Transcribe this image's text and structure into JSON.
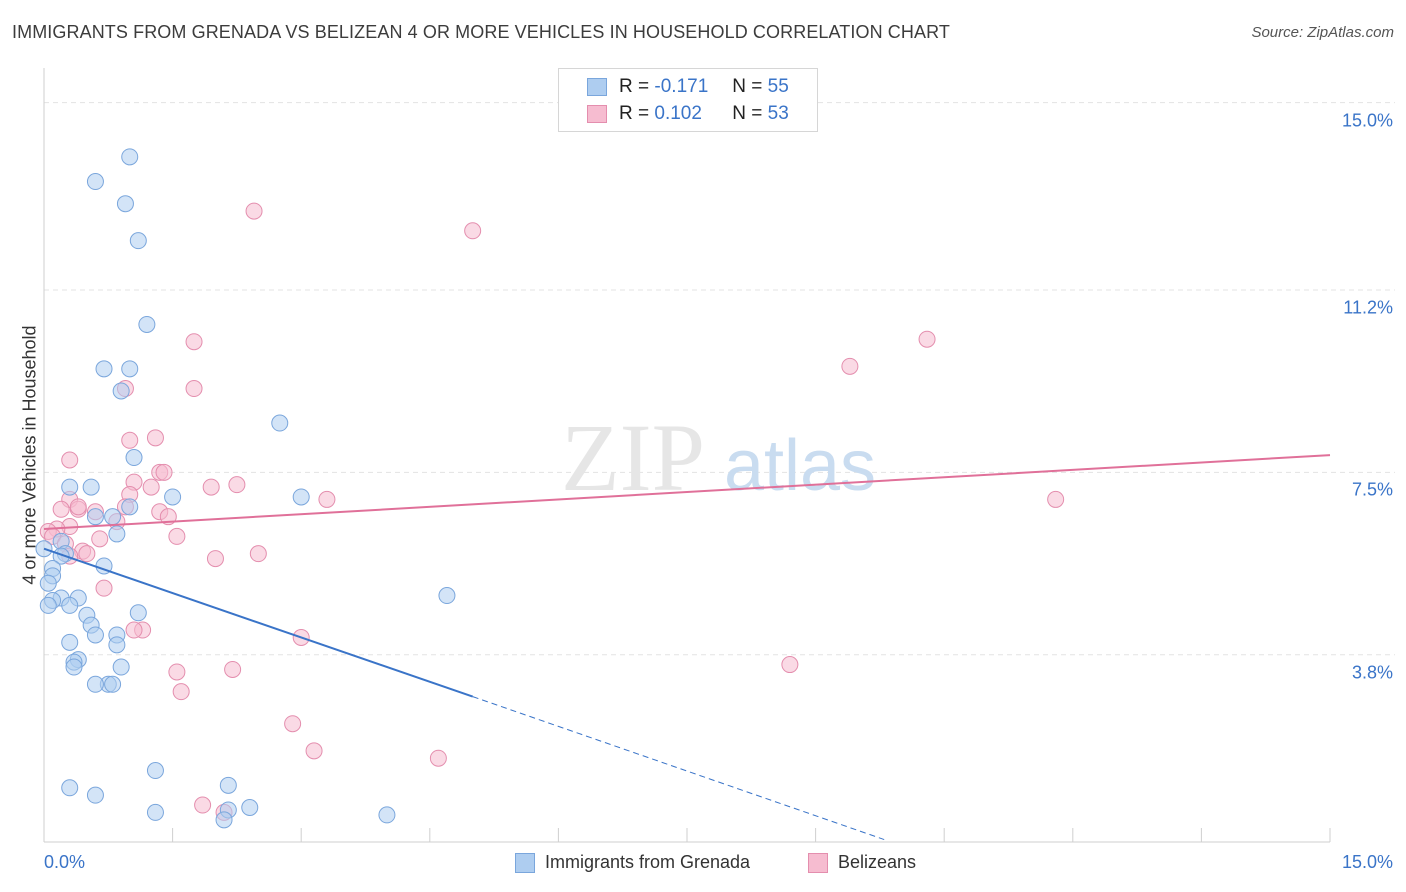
{
  "title": "IMMIGRANTS FROM GRENADA VS BELIZEAN 4 OR MORE VEHICLES IN HOUSEHOLD CORRELATION CHART",
  "source": "Source: ZipAtlas.com",
  "colors": {
    "blue": "#3a74c8",
    "blue_fill": "#aecdf0",
    "pink": "#e07099",
    "pink_fill": "#f6bcd0"
  },
  "legend": {
    "series1": {
      "r_label": "R =",
      "r_value": "-0.171",
      "n_label": "N =",
      "n_value": "55"
    },
    "series2": {
      "r_label": "R =",
      "r_value": "0.102",
      "n_label": "N =",
      "n_value": "53"
    }
  },
  "chart_data": {
    "type": "scatter",
    "title": "IMMIGRANTS FROM GRENADA VS BELIZEAN 4 OR MORE VEHICLES IN HOUSEHOLD CORRELATION CHART",
    "xlabel": "",
    "ylabel": "4 or more Vehicles in Household",
    "xlim": [
      0,
      15
    ],
    "ylim": [
      0,
      15.5
    ],
    "x_tick_labels": [
      "0.0%",
      "15.0%"
    ],
    "y_ticks": [
      3.8,
      7.5,
      11.2,
      15.0
    ],
    "y_tick_labels": [
      "3.8%",
      "7.5%",
      "11.2%",
      "15.0%"
    ],
    "grid": true,
    "legend_position": "top-center",
    "series": [
      {
        "name": "Immigrants from Grenada",
        "color": "#3a74c8",
        "points": [
          [
            1.0,
            13.9
          ],
          [
            0.6,
            13.4
          ],
          [
            0.95,
            12.95
          ],
          [
            1.1,
            12.2
          ],
          [
            1.2,
            10.5
          ],
          [
            0.7,
            9.6
          ],
          [
            1.0,
            9.6
          ],
          [
            0.9,
            9.15
          ],
          [
            2.75,
            8.5
          ],
          [
            1.05,
            7.8
          ],
          [
            0.55,
            7.2
          ],
          [
            0.3,
            7.2
          ],
          [
            1.5,
            7.0
          ],
          [
            3.0,
            7.0
          ],
          [
            1.0,
            6.8
          ],
          [
            0.8,
            6.6
          ],
          [
            0.6,
            6.6
          ],
          [
            0.85,
            6.25
          ],
          [
            0.2,
            6.1
          ],
          [
            0.0,
            5.95
          ],
          [
            0.25,
            5.85
          ],
          [
            0.2,
            5.8
          ],
          [
            0.7,
            5.6
          ],
          [
            0.1,
            5.55
          ],
          [
            0.1,
            5.4
          ],
          [
            0.05,
            5.25
          ],
          [
            4.7,
            5.0
          ],
          [
            0.4,
            4.95
          ],
          [
            0.2,
            4.95
          ],
          [
            0.1,
            4.9
          ],
          [
            0.05,
            4.8
          ],
          [
            0.3,
            4.8
          ],
          [
            1.1,
            4.65
          ],
          [
            0.5,
            4.6
          ],
          [
            0.55,
            4.4
          ],
          [
            0.6,
            4.2
          ],
          [
            0.85,
            4.2
          ],
          [
            0.85,
            4.0
          ],
          [
            0.3,
            4.05
          ],
          [
            0.4,
            3.7
          ],
          [
            0.35,
            3.65
          ],
          [
            0.35,
            3.55
          ],
          [
            0.9,
            3.55
          ],
          [
            0.75,
            3.2
          ],
          [
            0.6,
            3.2
          ],
          [
            0.8,
            3.2
          ],
          [
            1.3,
            1.45
          ],
          [
            0.3,
            1.1
          ],
          [
            2.15,
            1.15
          ],
          [
            0.6,
            0.95
          ],
          [
            1.3,
            0.6
          ],
          [
            2.4,
            0.7
          ],
          [
            2.15,
            0.65
          ],
          [
            4.0,
            0.55
          ],
          [
            2.1,
            0.45
          ]
        ],
        "trend": {
          "x": [
            0.0,
            5.0
          ],
          "y": [
            5.95,
            2.95
          ],
          "dashed_to": [
            9.8,
            0.05
          ]
        }
      },
      {
        "name": "Belizeans",
        "color": "#e07099",
        "points": [
          [
            2.45,
            12.8
          ],
          [
            5.0,
            12.4
          ],
          [
            1.75,
            10.15
          ],
          [
            10.3,
            10.2
          ],
          [
            9.4,
            9.65
          ],
          [
            1.75,
            9.2
          ],
          [
            0.95,
            9.2
          ],
          [
            1.3,
            8.2
          ],
          [
            1.0,
            8.15
          ],
          [
            0.3,
            7.75
          ],
          [
            1.35,
            7.5
          ],
          [
            1.4,
            7.5
          ],
          [
            1.05,
            7.3
          ],
          [
            2.25,
            7.25
          ],
          [
            1.95,
            7.2
          ],
          [
            1.25,
            7.2
          ],
          [
            1.0,
            7.05
          ],
          [
            0.3,
            6.95
          ],
          [
            3.3,
            6.95
          ],
          [
            11.8,
            6.95
          ],
          [
            0.95,
            6.8
          ],
          [
            0.4,
            6.75
          ],
          [
            0.2,
            6.75
          ],
          [
            0.6,
            6.7
          ],
          [
            1.35,
            6.7
          ],
          [
            1.45,
            6.6
          ],
          [
            0.85,
            6.5
          ],
          [
            0.3,
            6.4
          ],
          [
            0.15,
            6.35
          ],
          [
            0.05,
            6.3
          ],
          [
            0.65,
            6.15
          ],
          [
            1.55,
            6.2
          ],
          [
            0.1,
            6.2
          ],
          [
            0.25,
            6.05
          ],
          [
            0.45,
            5.9
          ],
          [
            0.5,
            5.85
          ],
          [
            2.5,
            5.85
          ],
          [
            2.0,
            5.75
          ],
          [
            0.3,
            5.8
          ],
          [
            0.7,
            5.15
          ],
          [
            1.15,
            4.3
          ],
          [
            1.05,
            4.3
          ],
          [
            3.0,
            4.15
          ],
          [
            8.7,
            3.6
          ],
          [
            1.55,
            3.45
          ],
          [
            2.2,
            3.5
          ],
          [
            1.6,
            3.05
          ],
          [
            2.9,
            2.4
          ],
          [
            3.15,
            1.85
          ],
          [
            4.6,
            1.7
          ],
          [
            1.85,
            0.75
          ],
          [
            2.1,
            0.6
          ],
          [
            0.4,
            6.8
          ]
        ],
        "trend": {
          "x": [
            0.0,
            15.0
          ],
          "y": [
            6.35,
            7.85
          ]
        }
      }
    ]
  },
  "bottom_legend": {
    "series1_label": "Immigrants from Grenada",
    "series2_label": "Belizeans"
  },
  "watermark": {
    "zip": "ZIP",
    "atlas": "atlas"
  }
}
